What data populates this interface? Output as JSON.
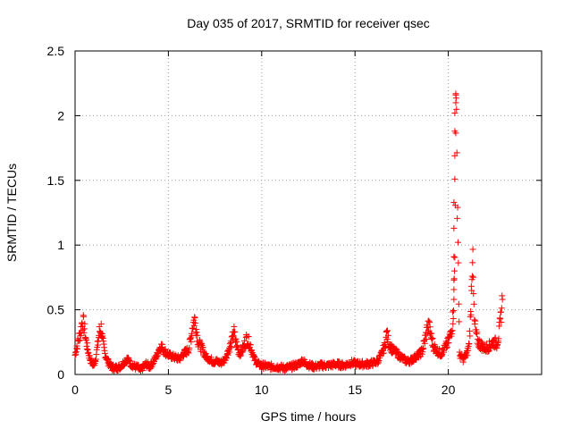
{
  "chart_data": {
    "type": "scatter",
    "title": "Day 035 of 2017, SRMTID for receiver qsec",
    "xlabel": "GPS time / hours",
    "ylabel": "SRMTID / TECUs",
    "xlim": [
      0,
      25
    ],
    "ylim": [
      0,
      2.5
    ],
    "xticks": [
      0,
      5,
      10,
      15,
      20
    ],
    "xtick_labels": [
      "0",
      "5",
      "10",
      "15",
      "20"
    ],
    "yticks": [
      0,
      0.5,
      1,
      1.5,
      2,
      2.5
    ],
    "ytick_labels": [
      "0",
      "0.5",
      "1",
      "1.5",
      "2",
      "2.5"
    ],
    "grid": true,
    "marker": "+",
    "color": "#ff0000",
    "series": [
      {
        "name": "SRMTID",
        "x": [
          0.0,
          0.1,
          0.2,
          0.3,
          0.4,
          0.5,
          0.6,
          0.7,
          0.8,
          0.9,
          1.0,
          1.1,
          1.2,
          1.3,
          1.4,
          1.5,
          1.6,
          1.7,
          1.8,
          1.9,
          2.0,
          2.2,
          2.4,
          2.6,
          2.8,
          3.0,
          3.2,
          3.4,
          3.5,
          3.6,
          3.8,
          4.0,
          4.2,
          4.4,
          4.5,
          4.6,
          4.8,
          5.0,
          5.2,
          5.4,
          5.6,
          5.8,
          6.0,
          6.1,
          6.2,
          6.3,
          6.4,
          6.5,
          6.6,
          6.8,
          7.0,
          7.2,
          7.4,
          7.6,
          7.8,
          8.0,
          8.2,
          8.4,
          8.5,
          8.6,
          8.8,
          9.0,
          9.2,
          9.4,
          9.6,
          9.8,
          10.0,
          10.4,
          10.8,
          11.2,
          11.6,
          12.0,
          12.2,
          12.4,
          12.8,
          13.2,
          13.6,
          14.0,
          14.4,
          14.8,
          15.2,
          15.6,
          16.0,
          16.2,
          16.4,
          16.6,
          16.7,
          16.8,
          17.0,
          17.2,
          17.4,
          17.6,
          17.8,
          18.0,
          18.2,
          18.4,
          18.6,
          18.8,
          18.9,
          19.0,
          19.2,
          19.4,
          19.6,
          19.8,
          20.0,
          20.1,
          20.2,
          20.25,
          20.3,
          20.35,
          20.4,
          20.5,
          20.6,
          20.8,
          21.0,
          21.1,
          21.2,
          21.25,
          21.3,
          21.35,
          21.4,
          21.5,
          21.6,
          21.8,
          22.0,
          22.2,
          22.4,
          22.6,
          22.7,
          22.8,
          22.9
        ],
        "y": [
          0.15,
          0.22,
          0.28,
          0.33,
          0.42,
          0.36,
          0.25,
          0.18,
          0.12,
          0.09,
          0.07,
          0.12,
          0.22,
          0.33,
          0.36,
          0.24,
          0.16,
          0.12,
          0.09,
          0.07,
          0.05,
          0.05,
          0.06,
          0.09,
          0.12,
          0.08,
          0.06,
          0.05,
          0.02,
          0.05,
          0.08,
          0.06,
          0.1,
          0.15,
          0.2,
          0.22,
          0.18,
          0.15,
          0.14,
          0.13,
          0.12,
          0.16,
          0.18,
          0.2,
          0.28,
          0.38,
          0.43,
          0.35,
          0.25,
          0.2,
          0.14,
          0.12,
          0.1,
          0.1,
          0.09,
          0.11,
          0.18,
          0.25,
          0.34,
          0.26,
          0.16,
          0.2,
          0.28,
          0.22,
          0.12,
          0.08,
          0.07,
          0.06,
          0.06,
          0.05,
          0.06,
          0.08,
          0.11,
          0.08,
          0.06,
          0.07,
          0.07,
          0.08,
          0.07,
          0.09,
          0.08,
          0.08,
          0.09,
          0.1,
          0.15,
          0.22,
          0.32,
          0.25,
          0.19,
          0.17,
          0.14,
          0.12,
          0.1,
          0.11,
          0.13,
          0.15,
          0.18,
          0.3,
          0.38,
          0.35,
          0.22,
          0.18,
          0.16,
          0.2,
          0.25,
          0.3,
          0.38,
          0.45,
          0.6,
          0.9,
          2.1,
          1.3,
          0.15,
          0.12,
          0.16,
          0.22,
          0.45,
          0.75,
          0.94,
          0.6,
          0.4,
          0.3,
          0.25,
          0.22,
          0.2,
          0.22,
          0.25,
          0.24,
          0.3,
          0.42,
          0.58
        ]
      }
    ],
    "outliers": [
      {
        "x": 20.4,
        "y": 2.17
      },
      {
        "x": 20.4,
        "y": 2.16
      },
      {
        "x": 20.4,
        "y": 2.1
      },
      {
        "x": 20.35,
        "y": 2.02
      },
      {
        "x": 20.35,
        "y": 1.88
      },
      {
        "x": 20.35,
        "y": 1.69
      },
      {
        "x": 20.35,
        "y": 1.51
      },
      {
        "x": 20.3,
        "y": 1.33
      },
      {
        "x": 20.3,
        "y": 1.13
      },
      {
        "x": 20.3,
        "y": 0.91
      },
      {
        "x": 20.3,
        "y": 0.73
      },
      {
        "x": 20.3,
        "y": 0.58
      }
    ]
  }
}
